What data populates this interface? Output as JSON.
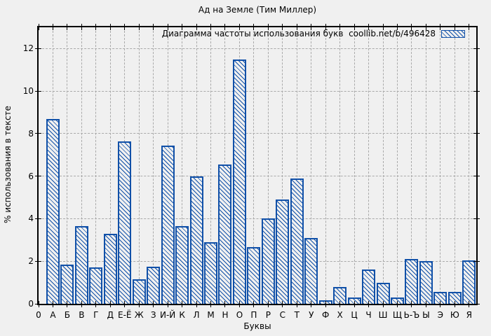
{
  "chart_data": {
    "type": "bar",
    "title": "Ад на Земле (Тим Миллер)",
    "legend_label": "Диаграмма частоты использования букв  coollib.net/b/496428",
    "xlabel": "Буквы",
    "ylabel": "% использования в тексте",
    "x_origin_label": "0",
    "categories": [
      "А",
      "Б",
      "В",
      "Г",
      "Д",
      "Е-Ё",
      "Ж",
      "З",
      "И-Й",
      "К",
      "Л",
      "М",
      "Н",
      "О",
      "П",
      "Р",
      "С",
      "Т",
      "У",
      "Ф",
      "Х",
      "Ц",
      "Ч",
      "Ш",
      "Щ",
      "Ь-Ъ",
      "Ы",
      "Э",
      "Ю",
      "Я"
    ],
    "values": [
      8.7,
      1.85,
      3.65,
      1.7,
      3.3,
      7.65,
      1.15,
      1.75,
      7.45,
      3.65,
      6.0,
      2.9,
      6.55,
      11.5,
      2.65,
      4.0,
      4.9,
      5.9,
      3.1,
      0.15,
      0.8,
      0.3,
      1.6,
      1.0,
      0.3,
      2.1,
      2.0,
      0.55,
      0.55,
      2.05
    ],
    "yticks": [
      0,
      2,
      4,
      6,
      8,
      10,
      12
    ],
    "ylim": [
      0,
      13
    ],
    "xlim": [
      0,
      30.5
    ],
    "grid": true,
    "hatch": "backslash-diagonal",
    "legend_position": "top-right-inside",
    "colors": {
      "bar": "#1050a8",
      "axis": "#000000",
      "grid": "#a9a9a9",
      "background": "#f0f0f0",
      "text": "#000000"
    }
  }
}
